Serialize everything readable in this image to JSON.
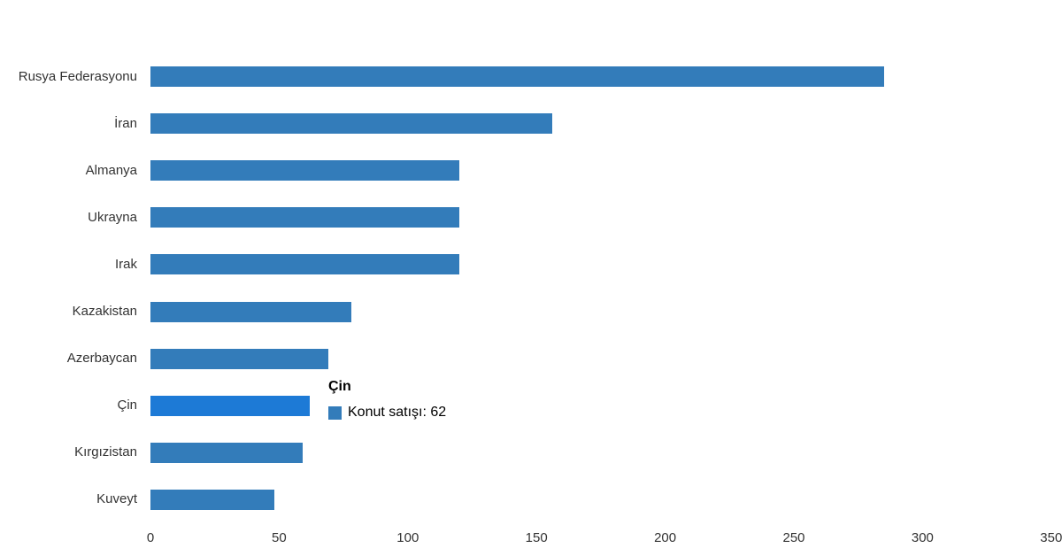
{
  "chart_data": {
    "type": "bar",
    "orientation": "horizontal",
    "title": "",
    "series": [
      {
        "name": "Konut satışı",
        "values": [
          285,
          156,
          120,
          120,
          120,
          78,
          69,
          62,
          59,
          48
        ]
      }
    ],
    "categories": [
      "Rusya Federasyonu",
      "İran",
      "Almanya",
      "Ukrayna",
      "Irak",
      "Kazakistan",
      "Azerbaycan",
      "Çin",
      "Kırgızistan",
      "Kuveyt"
    ],
    "xlabel": "",
    "ylabel": "",
    "xlim": [
      0,
      350
    ],
    "x_ticks": [
      0,
      50,
      100,
      150,
      200,
      250,
      300,
      350
    ],
    "grid": false,
    "legend_position": "none",
    "hovered_index": 7,
    "bar_color": "#337cba",
    "hover_color": "#1d7ad6"
  },
  "tooltip": {
    "title": "Çin",
    "series_label": "Konut satışı",
    "value": "62",
    "text": "Konut satışı: 62",
    "swatch_color": "#337cba"
  },
  "colors": {
    "background": "#ffffff",
    "category_label": "#333333",
    "axis_label": "#333333"
  }
}
